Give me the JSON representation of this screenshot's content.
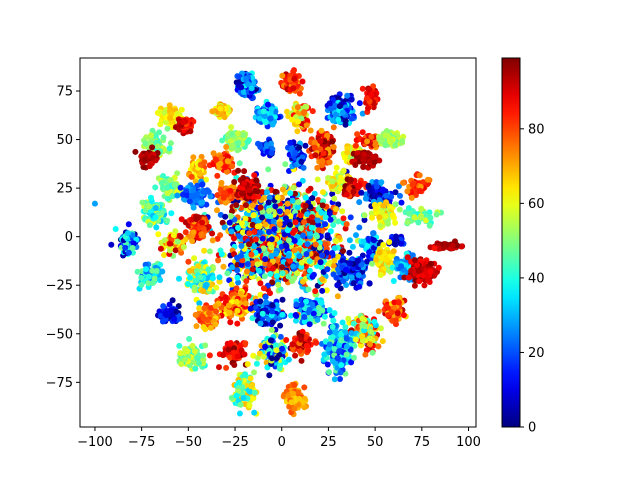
{
  "chart_data": {
    "type": "scatter",
    "title": "",
    "xlabel": "",
    "ylabel": "",
    "xlim": [
      -108,
      104
    ],
    "ylim": [
      -98,
      92
    ],
    "xticks": [
      -100,
      -75,
      -50,
      -25,
      0,
      25,
      50,
      75,
      100
    ],
    "yticks": [
      -75,
      -50,
      -25,
      0,
      25,
      50,
      75
    ],
    "colormap": "jet",
    "color_range": [
      0,
      99
    ],
    "colorbar_ticks": [
      0,
      20,
      40,
      60,
      80
    ],
    "grid": false,
    "legend": "none",
    "marker_size": 3,
    "outlier_point": {
      "x": -100,
      "y": 17,
      "c": 28
    },
    "clusters": [
      {
        "x": 0,
        "y": 0,
        "sx": 14,
        "sy": 12,
        "n": 1600,
        "c": [
          0,
          99
        ]
      },
      {
        "x": -18,
        "y": 78,
        "sx": 2.5,
        "sy": 3,
        "n": 120,
        "c": [
          0,
          40
        ]
      },
      {
        "x": 5,
        "y": 80,
        "sx": 2,
        "sy": 2.5,
        "n": 90,
        "c": [
          70,
          95
        ]
      },
      {
        "x": -8,
        "y": 63,
        "sx": 2.5,
        "sy": 2.5,
        "n": 120,
        "c": [
          10,
          40
        ]
      },
      {
        "x": 10,
        "y": 62,
        "sx": 2.5,
        "sy": 3,
        "n": 100,
        "c": [
          50,
          95
        ]
      },
      {
        "x": 32,
        "y": 65,
        "sx": 3,
        "sy": 3,
        "n": 180,
        "c": [
          0,
          40
        ]
      },
      {
        "x": 48,
        "y": 72,
        "sx": 1.5,
        "sy": 3,
        "n": 60,
        "c": [
          80,
          95
        ]
      },
      {
        "x": -60,
        "y": 62,
        "sx": 3,
        "sy": 2,
        "n": 80,
        "c": [
          55,
          70
        ]
      },
      {
        "x": -52,
        "y": 58,
        "sx": 2,
        "sy": 2,
        "n": 60,
        "c": [
          80,
          99
        ]
      },
      {
        "x": -32,
        "y": 65,
        "sx": 2,
        "sy": 2,
        "n": 50,
        "c": [
          55,
          75
        ]
      },
      {
        "x": -68,
        "y": 47,
        "sx": 3,
        "sy": 3,
        "n": 90,
        "c": [
          40,
          60
        ]
      },
      {
        "x": -72,
        "y": 40,
        "sx": 3,
        "sy": 2,
        "n": 60,
        "c": [
          90,
          99
        ]
      },
      {
        "x": -25,
        "y": 50,
        "sx": 3,
        "sy": 3,
        "n": 60,
        "c": [
          40,
          60
        ]
      },
      {
        "x": -8,
        "y": 45,
        "sx": 2,
        "sy": 2,
        "n": 40,
        "c": [
          0,
          30
        ]
      },
      {
        "x": 8,
        "y": 42,
        "sx": 2,
        "sy": 3,
        "n": 80,
        "c": [
          0,
          30
        ]
      },
      {
        "x": 22,
        "y": 45,
        "sx": 3,
        "sy": 4,
        "n": 100,
        "c": [
          70,
          99
        ]
      },
      {
        "x": 38,
        "y": 42,
        "sx": 3,
        "sy": 2,
        "n": 60,
        "c": [
          50,
          70
        ]
      },
      {
        "x": 48,
        "y": 50,
        "sx": 3,
        "sy": 2,
        "n": 60,
        "c": [
          70,
          95
        ]
      },
      {
        "x": 58,
        "y": 50,
        "sx": 3,
        "sy": 2,
        "n": 60,
        "c": [
          45,
          60
        ]
      },
      {
        "x": 45,
        "y": 40,
        "sx": 3,
        "sy": 2,
        "n": 60,
        "c": [
          90,
          99
        ]
      },
      {
        "x": -45,
        "y": 35,
        "sx": 2,
        "sy": 3,
        "n": 50,
        "c": [
          60,
          80
        ]
      },
      {
        "x": -32,
        "y": 38,
        "sx": 3,
        "sy": 3,
        "n": 60,
        "c": [
          70,
          90
        ]
      },
      {
        "x": -60,
        "y": 25,
        "sx": 3,
        "sy": 3,
        "n": 60,
        "c": [
          40,
          60
        ]
      },
      {
        "x": -45,
        "y": 22,
        "sx": 4,
        "sy": 3,
        "n": 80,
        "c": [
          15,
          30
        ]
      },
      {
        "x": -28,
        "y": 22,
        "sx": 3,
        "sy": 2,
        "n": 50,
        "c": [
          70,
          85
        ]
      },
      {
        "x": -18,
        "y": 25,
        "sx": 3,
        "sy": 3,
        "n": 70,
        "c": [
          85,
          99
        ]
      },
      {
        "x": 30,
        "y": 28,
        "sx": 3,
        "sy": 3,
        "n": 60,
        "c": [
          50,
          70
        ]
      },
      {
        "x": 38,
        "y": 25,
        "sx": 3,
        "sy": 2,
        "n": 60,
        "c": [
          80,
          99
        ]
      },
      {
        "x": 52,
        "y": 22,
        "sx": 4,
        "sy": 3,
        "n": 80,
        "c": [
          0,
          30
        ]
      },
      {
        "x": 72,
        "y": 26,
        "sx": 3,
        "sy": 2,
        "n": 50,
        "c": [
          70,
          90
        ]
      },
      {
        "x": -68,
        "y": 12,
        "sx": 3,
        "sy": 3,
        "n": 100,
        "c": [
          30,
          60
        ]
      },
      {
        "x": -45,
        "y": 5,
        "sx": 3,
        "sy": 3,
        "n": 80,
        "c": [
          70,
          95
        ]
      },
      {
        "x": 55,
        "y": 12,
        "sx": 3,
        "sy": 3,
        "n": 60,
        "c": [
          50,
          70
        ]
      },
      {
        "x": 75,
        "y": 10,
        "sx": 4,
        "sy": 2,
        "n": 60,
        "c": [
          40,
          60
        ]
      },
      {
        "x": -82,
        "y": -2,
        "sx": 2.5,
        "sy": 3,
        "n": 80,
        "c": [
          0,
          50
        ]
      },
      {
        "x": -58,
        "y": -3,
        "sx": 3,
        "sy": 3,
        "n": 70,
        "c": [
          50,
          95
        ]
      },
      {
        "x": 48,
        "y": -5,
        "sx": 3,
        "sy": 3,
        "n": 60,
        "c": [
          0,
          40
        ]
      },
      {
        "x": 62,
        "y": -2,
        "sx": 2,
        "sy": 1,
        "n": 30,
        "c": [
          0,
          20
        ]
      },
      {
        "x": 88,
        "y": -5,
        "sx": 3,
        "sy": 1,
        "n": 40,
        "c": [
          90,
          99
        ]
      },
      {
        "x": -70,
        "y": -20,
        "sx": 2.5,
        "sy": 3,
        "n": 70,
        "c": [
          20,
          50
        ]
      },
      {
        "x": -42,
        "y": -22,
        "sx": 4,
        "sy": 4,
        "n": 120,
        "c": [
          30,
          70
        ]
      },
      {
        "x": 38,
        "y": -18,
        "sx": 4,
        "sy": 4,
        "n": 120,
        "c": [
          0,
          30
        ]
      },
      {
        "x": 55,
        "y": -12,
        "sx": 3,
        "sy": 3,
        "n": 80,
        "c": [
          50,
          70
        ]
      },
      {
        "x": 68,
        "y": -15,
        "sx": 3,
        "sy": 3,
        "n": 60,
        "c": [
          20,
          40
        ]
      },
      {
        "x": 75,
        "y": -18,
        "sx": 4,
        "sy": 3,
        "n": 100,
        "c": [
          85,
          99
        ]
      },
      {
        "x": -25,
        "y": -35,
        "sx": 4,
        "sy": 4,
        "n": 120,
        "c": [
          60,
          90
        ]
      },
      {
        "x": -8,
        "y": -40,
        "sx": 4,
        "sy": 3,
        "n": 100,
        "c": [
          0,
          40
        ]
      },
      {
        "x": 15,
        "y": -38,
        "sx": 4,
        "sy": 3,
        "n": 100,
        "c": [
          10,
          50
        ]
      },
      {
        "x": -60,
        "y": -40,
        "sx": 3,
        "sy": 2,
        "n": 60,
        "c": [
          0,
          20
        ]
      },
      {
        "x": -40,
        "y": -42,
        "sx": 3,
        "sy": 3,
        "n": 60,
        "c": [
          65,
          85
        ]
      },
      {
        "x": 60,
        "y": -38,
        "sx": 3,
        "sy": 3,
        "n": 60,
        "c": [
          65,
          95
        ]
      },
      {
        "x": 45,
        "y": -50,
        "sx": 4,
        "sy": 4,
        "n": 140,
        "c": [
          30,
          95
        ]
      },
      {
        "x": 30,
        "y": -58,
        "sx": 4,
        "sy": 6,
        "n": 140,
        "c": [
          10,
          50
        ]
      },
      {
        "x": -48,
        "y": -62,
        "sx": 3,
        "sy": 3,
        "n": 70,
        "c": [
          40,
          60
        ]
      },
      {
        "x": -25,
        "y": -60,
        "sx": 3,
        "sy": 3,
        "n": 60,
        "c": [
          80,
          99
        ]
      },
      {
        "x": -5,
        "y": -60,
        "sx": 4,
        "sy": 4,
        "n": 100,
        "c": [
          0,
          70
        ]
      },
      {
        "x": 10,
        "y": -55,
        "sx": 3,
        "sy": 3,
        "n": 70,
        "c": [
          75,
          99
        ]
      },
      {
        "x": -20,
        "y": -80,
        "sx": 3,
        "sy": 4,
        "n": 100,
        "c": [
          30,
          70
        ]
      },
      {
        "x": 7,
        "y": -83,
        "sx": 2.5,
        "sy": 3,
        "n": 80,
        "c": [
          65,
          80
        ]
      }
    ]
  }
}
